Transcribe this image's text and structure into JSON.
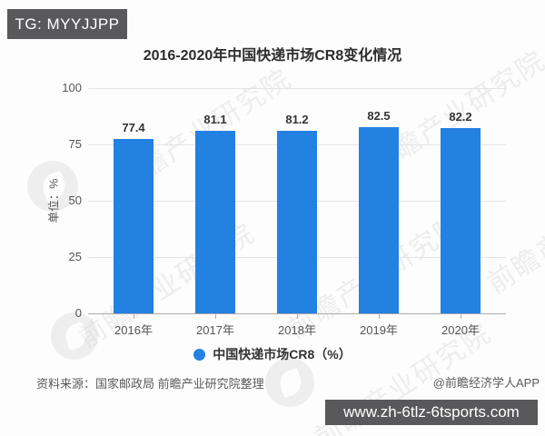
{
  "header": {
    "tg_badge": "TG: MYYJJPP"
  },
  "chart_data": {
    "type": "bar",
    "title": "2016-2020年中国快递市场CR8变化情况",
    "categories": [
      "2016年",
      "2017年",
      "2018年",
      "2019年",
      "2020年"
    ],
    "values": [
      77.4,
      81.1,
      81.2,
      82.5,
      82.2
    ],
    "value_labels": [
      "77.4",
      "81.1",
      "81.2",
      "82.5",
      "82.2"
    ],
    "ylabel": "单位：%",
    "ylim": [
      0,
      100
    ],
    "yticks": [
      0,
      25,
      50,
      75,
      100
    ],
    "legend": [
      "中国快递市场CR8（%）"
    ],
    "legend_position": "bottom",
    "grid": true,
    "bar_color": "#2381E2"
  },
  "footer": {
    "source": "资料来源：国家邮政局 前瞻产业研究院整理",
    "credit": "@前瞻经济学人APP"
  },
  "overlay": {
    "url_badge": "www.zh-6tlz-6tsports.com"
  },
  "watermark": {
    "text": "前瞻产业研究院"
  }
}
